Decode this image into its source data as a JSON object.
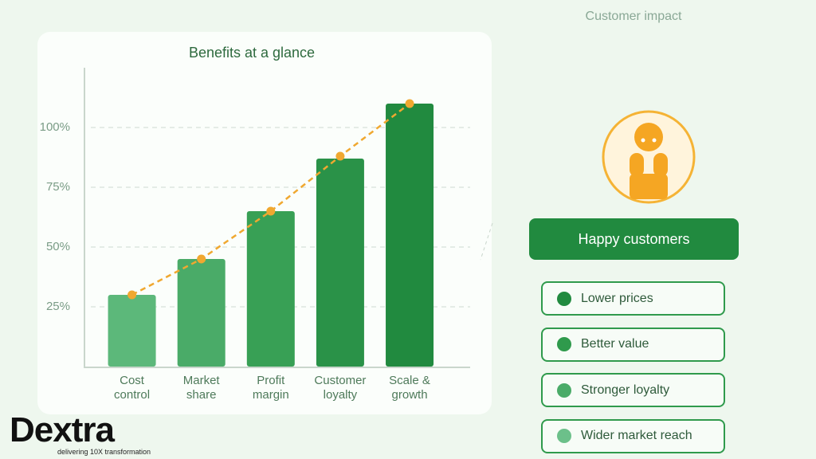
{
  "chart_data": {
    "type": "bar",
    "title": "Benefits at a glance",
    "categories": [
      "Cost control",
      "Market share",
      "Profit margin",
      "Customer loyalty",
      "Scale & growth"
    ],
    "values": [
      30,
      45,
      65,
      87,
      110
    ],
    "colors": [
      "#5cb87a",
      "#4aab68",
      "#38a055",
      "#2a9248",
      "#218a3f"
    ],
    "line_values": [
      30,
      45,
      65,
      88,
      110
    ],
    "line_color": "#f0a830",
    "ylim": [
      0,
      125
    ],
    "yticks": [
      {
        "value": 25,
        "label": "25%"
      },
      {
        "value": 50,
        "label": "50%"
      },
      {
        "value": 75,
        "label": "75%"
      },
      {
        "value": 100,
        "label": "100%"
      }
    ],
    "grid": true
  },
  "header": "Customer impact",
  "hero": "Happy customers",
  "list": [
    {
      "text": "Lower prices",
      "color": "#218a3f"
    },
    {
      "text": "Better value",
      "color": "#2f9a4c"
    },
    {
      "text": "Stronger loyalty",
      "color": "#4aab68"
    },
    {
      "text": "Wider market reach",
      "color": "#6cc08a"
    }
  ],
  "logo": {
    "name": "Dextra",
    "tagline": "delivering 10X transformation"
  }
}
